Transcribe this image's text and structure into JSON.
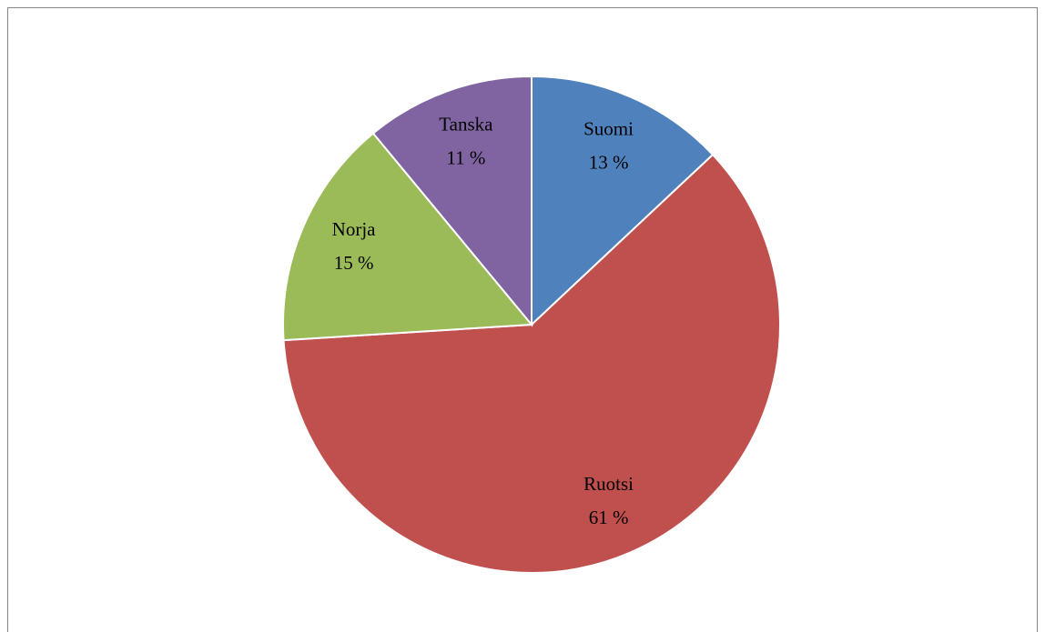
{
  "chart_data": {
    "type": "pie",
    "categories": [
      "Suomi",
      "Ruotsi",
      "Norja",
      "Tanska"
    ],
    "values": [
      13,
      61,
      15,
      11
    ],
    "value_labels": [
      "13 %",
      "61 %",
      "15 %",
      "11 %"
    ],
    "colors": [
      "#4f81bd",
      "#c0504d",
      "#9bbb59",
      "#8064a2"
    ]
  }
}
